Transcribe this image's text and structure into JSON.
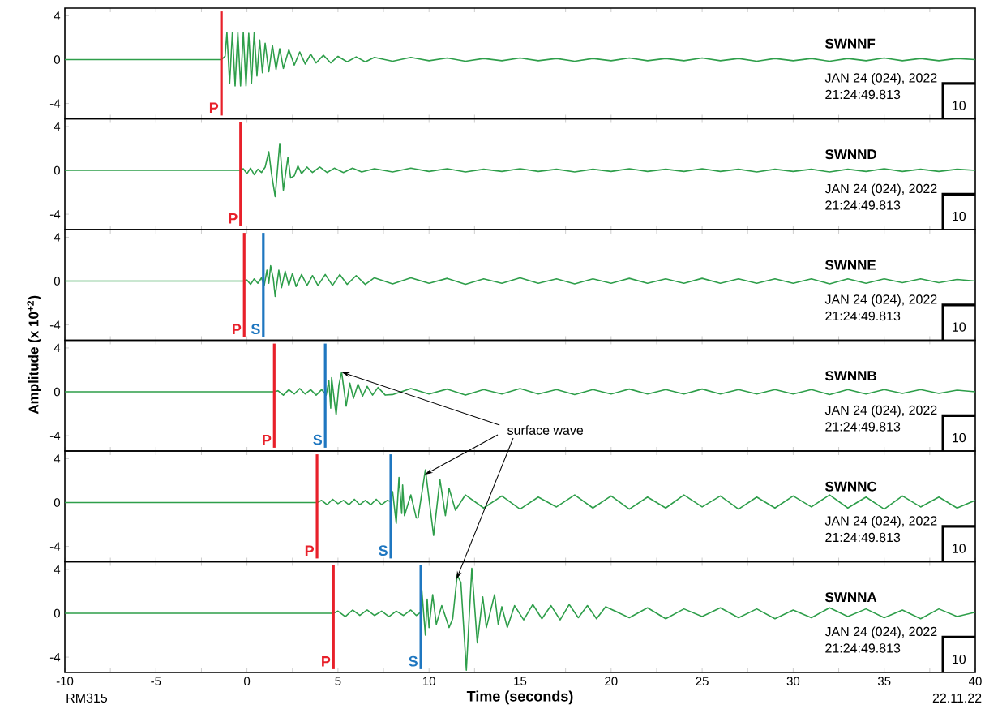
{
  "chart_data": [
    {
      "type": "line",
      "title": "SWNNF",
      "color": "#2e9e4a",
      "tick_labels": "y",
      "xlim": [
        -10,
        40
      ],
      "ylim": [
        -5.4,
        4.7
      ],
      "yticks": [
        -4,
        0,
        4
      ],
      "xticks": [
        -10,
        {
          "value": -7.5,
          "label": null
        },
        -5,
        {
          "value": -2.5,
          "label": null
        },
        0,
        {
          "value": 2.5,
          "label": null
        },
        5,
        {
          "value": 7.5,
          "label": null
        },
        10,
        {
          "value": 12.5,
          "label": null
        },
        15,
        {
          "value": 17.5,
          "label": null
        },
        20,
        {
          "value": 22.5,
          "label": null
        },
        25,
        {
          "value": 27.5,
          "label": null
        },
        30,
        {
          "value": 32.5,
          "label": null
        },
        35,
        {
          "value": 37.5,
          "label": null
        },
        40
      ],
      "x": [
        -10,
        -1.4,
        -1.2,
        -1.1,
        -0.95,
        -0.8,
        -0.65,
        -0.5,
        -0.35,
        -0.2,
        -0.05,
        0.1,
        0.25,
        0.4,
        0.55,
        0.7,
        0.85,
        1.0,
        1.2,
        1.4,
        1.6,
        1.8,
        2.0,
        2.3,
        2.6,
        2.9,
        3.2,
        3.5,
        3.8,
        4.2,
        4.6,
        5.0,
        5.5,
        6,
        6.5,
        7,
        8,
        9,
        10,
        11,
        12,
        13,
        14,
        15,
        16,
        17,
        18,
        19,
        20,
        21,
        22,
        23,
        24,
        25,
        26,
        27,
        28,
        29,
        30,
        31,
        32,
        33,
        34,
        35,
        36,
        37,
        38,
        39,
        40
      ],
      "values": [
        0,
        0,
        0.3,
        2.5,
        -2.2,
        2.5,
        -2.4,
        2.5,
        -2.4,
        2.5,
        -2.4,
        2.4,
        -2.2,
        2.5,
        -1.5,
        1.8,
        -1.2,
        1.5,
        -1.1,
        1.3,
        -0.9,
        1.0,
        -0.8,
        0.9,
        -0.5,
        0.7,
        -0.4,
        0.5,
        -0.3,
        0.4,
        -0.3,
        0.3,
        -0.2,
        0.25,
        -0.2,
        0.2,
        -0.15,
        0.2,
        -0.1,
        0.15,
        -0.15,
        0.1,
        -0.1,
        0.15,
        -0.1,
        0.1,
        -0.15,
        0.1,
        -0.1,
        0.15,
        -0.1,
        0.1,
        -0.1,
        0.15,
        -0.1,
        0.1,
        -0.15,
        0.1,
        -0.1,
        0.1,
        -0.15,
        0.1,
        -0.1,
        0.15,
        -0.1,
        0.1,
        -0.1,
        0.1,
        0
      ],
      "ref_lines": [
        {
          "axis": "x",
          "value": -1.4,
          "label": "P",
          "color": "#e8202a"
        }
      ],
      "annotations": [
        "JAN 24 (024), 2022",
        "21:24:49.813",
        "10"
      ]
    },
    {
      "type": "line",
      "title": "SWNND",
      "color": "#2e9e4a",
      "tick_labels": "y",
      "xlim": [
        -10,
        40
      ],
      "ylim": [
        -5.4,
        4.7
      ],
      "yticks": [
        -4,
        0,
        4
      ],
      "xticks": [
        -10,
        {
          "value": -7.5,
          "label": null
        },
        -5,
        {
          "value": -2.5,
          "label": null
        },
        0,
        {
          "value": 2.5,
          "label": null
        },
        5,
        {
          "value": 7.5,
          "label": null
        },
        10,
        {
          "value": 12.5,
          "label": null
        },
        15,
        {
          "value": 17.5,
          "label": null
        },
        20,
        {
          "value": 22.5,
          "label": null
        },
        25,
        {
          "value": 27.5,
          "label": null
        },
        30,
        {
          "value": 32.5,
          "label": null
        },
        35,
        {
          "value": 37.5,
          "label": null
        },
        40
      ],
      "x": [
        -10,
        -0.35,
        -0.2,
        0,
        0.2,
        0.4,
        0.6,
        0.8,
        1.0,
        1.2,
        1.35,
        1.55,
        1.8,
        2.0,
        2.25,
        2.4,
        2.6,
        2.8,
        3.0,
        3.3,
        3.6,
        4,
        4.4,
        4.8,
        5.3,
        5.8,
        6.3,
        7,
        8,
        9,
        10,
        11,
        12,
        13,
        14,
        15,
        16,
        17,
        18,
        19,
        20,
        21,
        22,
        23,
        24,
        25,
        26,
        27,
        28,
        29,
        30,
        31,
        32,
        33,
        34,
        35,
        36,
        37,
        38,
        39,
        40
      ],
      "values": [
        0,
        0,
        0.15,
        -0.3,
        0.2,
        -0.4,
        0.1,
        -0.2,
        0.3,
        1.7,
        -0.3,
        -2.4,
        2.45,
        -1.8,
        1.2,
        -0.7,
        -0.5,
        0.4,
        -0.3,
        0.3,
        -0.2,
        0.3,
        -0.2,
        0.2,
        -0.2,
        0.2,
        -0.15,
        0.15,
        -0.15,
        0.2,
        -0.1,
        0.15,
        -0.15,
        0.1,
        -0.1,
        0.15,
        -0.1,
        0.1,
        -0.15,
        0.1,
        -0.1,
        0.15,
        -0.1,
        0.1,
        -0.1,
        0.15,
        -0.1,
        0.1,
        -0.15,
        0.1,
        -0.1,
        0.1,
        -0.15,
        0.1,
        -0.1,
        0.15,
        -0.1,
        0.1,
        -0.1,
        0.1,
        0
      ],
      "ref_lines": [
        {
          "axis": "x",
          "value": -0.35,
          "label": "P",
          "color": "#e8202a"
        }
      ],
      "annotations": [
        "JAN 24 (024), 2022",
        "21:24:49.813",
        "10"
      ]
    },
    {
      "type": "line",
      "title": "SWNNE",
      "color": "#2e9e4a",
      "tick_labels": "y",
      "xlim": [
        -10,
        40
      ],
      "ylim": [
        -5.4,
        4.7
      ],
      "yticks": [
        -4,
        0,
        4
      ],
      "xticks": [
        -10,
        {
          "value": -7.5,
          "label": null
        },
        -5,
        {
          "value": -2.5,
          "label": null
        },
        0,
        {
          "value": 2.5,
          "label": null
        },
        5,
        {
          "value": 7.5,
          "label": null
        },
        10,
        {
          "value": 12.5,
          "label": null
        },
        15,
        {
          "value": 17.5,
          "label": null
        },
        20,
        {
          "value": 22.5,
          "label": null
        },
        25,
        {
          "value": 27.5,
          "label": null
        },
        30,
        {
          "value": 32.5,
          "label": null
        },
        35,
        {
          "value": 37.5,
          "label": null
        },
        40
      ],
      "x": [
        -10,
        -0.15,
        0,
        0.2,
        0.4,
        0.6,
        0.8,
        0.95,
        1.1,
        1.2,
        1.3,
        1.45,
        1.55,
        1.75,
        1.9,
        2.1,
        2.3,
        2.5,
        2.7,
        3.0,
        3.3,
        3.6,
        3.9,
        4.3,
        4.7,
        5.1,
        5.5,
        6,
        6.5,
        7,
        8,
        9,
        10,
        11,
        12,
        13,
        14,
        15,
        16,
        17,
        18,
        19,
        20,
        21,
        22,
        23,
        24,
        25,
        26,
        27,
        28,
        29,
        30,
        31,
        32,
        33,
        34,
        35,
        36,
        37,
        38,
        39,
        40
      ],
      "values": [
        0,
        0,
        0.1,
        -0.3,
        0.2,
        -0.2,
        0.3,
        -0.4,
        1.0,
        -0.2,
        1.4,
        0.2,
        -1.4,
        1.0,
        -0.6,
        0.9,
        -0.4,
        0.7,
        -0.5,
        0.6,
        -0.4,
        0.5,
        -0.4,
        0.6,
        -0.4,
        0.6,
        -0.3,
        0.5,
        -0.3,
        0.3,
        -0.25,
        0.3,
        -0.2,
        0.25,
        -0.3,
        0.2,
        -0.2,
        0.3,
        -0.2,
        0.2,
        -0.25,
        0.2,
        -0.2,
        0.25,
        -0.2,
        0.2,
        -0.2,
        0.25,
        -0.2,
        0.2,
        -0.2,
        0.2,
        -0.2,
        0.2,
        -0.25,
        0.2,
        -0.2,
        0.2,
        -0.15,
        0.2,
        -0.15,
        0.15,
        0
      ],
      "ref_lines": [
        {
          "axis": "x",
          "value": -0.15,
          "label": "P",
          "color": "#e8202a"
        },
        {
          "axis": "x",
          "value": 0.9,
          "label": "S",
          "color": "#1f77c0"
        }
      ],
      "annotations": [
        "JAN 24 (024), 2022",
        "21:24:49.813",
        "10"
      ]
    },
    {
      "type": "line",
      "title": "SWNNB",
      "color": "#2e9e4a",
      "tick_labels": "y",
      "xlim": [
        -10,
        40
      ],
      "ylim": [
        -5.4,
        4.7
      ],
      "yticks": [
        -4,
        0,
        4
      ],
      "ylabel": "Amplitude (x 10$^{+2}$)",
      "xticks": [
        -10,
        {
          "value": -7.5,
          "label": null
        },
        -5,
        {
          "value": -2.5,
          "label": null
        },
        0,
        {
          "value": 2.5,
          "label": null
        },
        5,
        {
          "value": 7.5,
          "label": null
        },
        10,
        {
          "value": 12.5,
          "label": null
        },
        15,
        {
          "value": 17.5,
          "label": null
        },
        20,
        {
          "value": 22.5,
          "label": null
        },
        25,
        {
          "value": 27.5,
          "label": null
        },
        30,
        {
          "value": 32.5,
          "label": null
        },
        35,
        {
          "value": 37.5,
          "label": null
        },
        40
      ],
      "x": [
        -10,
        1.5,
        1.7,
        2.0,
        2.3,
        2.6,
        2.9,
        3.2,
        3.5,
        3.8,
        4.1,
        4.35,
        4.5,
        4.6,
        4.65,
        4.8,
        4.9,
        5.05,
        5.2,
        5.45,
        5.65,
        5.85,
        6.1,
        6.35,
        6.6,
        6.9,
        7.2,
        7.6,
        8,
        9,
        10,
        11,
        12,
        13,
        14,
        15,
        16,
        17,
        18,
        19,
        20,
        21,
        22,
        23,
        24,
        25,
        26,
        27,
        28,
        29,
        30,
        31,
        32,
        33,
        34,
        35,
        36,
        37,
        38,
        39,
        40
      ],
      "values": [
        0,
        0,
        0.1,
        -0.3,
        0.2,
        -0.2,
        0.3,
        -0.2,
        0.2,
        -0.3,
        0.2,
        -0.3,
        1.0,
        -1.5,
        1.3,
        -0.8,
        -2.1,
        0.6,
        1.8,
        -1.3,
        0.8,
        -0.6,
        0.7,
        -0.4,
        0.5,
        -0.3,
        0.4,
        -0.3,
        -0.25,
        0.3,
        -0.2,
        0.25,
        -0.3,
        0.2,
        -0.2,
        0.3,
        -0.2,
        0.2,
        -0.25,
        0.2,
        -0.2,
        0.25,
        -0.2,
        0.2,
        -0.2,
        0.25,
        -0.2,
        0.2,
        -0.2,
        0.2,
        -0.2,
        0.2,
        -0.25,
        0.2,
        -0.2,
        0.2,
        -0.15,
        0.2,
        -0.15,
        0.15,
        0
      ],
      "ref_lines": [
        {
          "axis": "x",
          "value": 1.5,
          "label": "P",
          "color": "#e8202a"
        },
        {
          "axis": "x",
          "value": 4.3,
          "label": "S",
          "color": "#1f77c0"
        }
      ],
      "annotations": [
        "JAN 24 (024), 2022",
        "21:24:49.813",
        "10",
        {
          "text": "surface wave",
          "x": 5.2,
          "y": 1.8
        }
      ]
    },
    {
      "type": "line",
      "title": "SWNNC",
      "color": "#2e9e4a",
      "tick_labels": "y",
      "xlim": [
        -10,
        40
      ],
      "ylim": [
        -5.4,
        4.7
      ],
      "yticks": [
        -4,
        0,
        4
      ],
      "xticks": [
        -10,
        {
          "value": -7.5,
          "label": null
        },
        -5,
        {
          "value": -2.5,
          "label": null
        },
        0,
        {
          "value": 2.5,
          "label": null
        },
        5,
        {
          "value": 7.5,
          "label": null
        },
        10,
        {
          "value": 12.5,
          "label": null
        },
        15,
        {
          "value": 17.5,
          "label": null
        },
        20,
        {
          "value": 22.5,
          "label": null
        },
        25,
        {
          "value": 27.5,
          "label": null
        },
        30,
        {
          "value": 32.5,
          "label": null
        },
        35,
        {
          "value": 37.5,
          "label": null
        },
        40
      ],
      "x": [
        -10,
        3.85,
        4.1,
        4.4,
        4.7,
        5.0,
        5.3,
        5.6,
        5.9,
        6.2,
        6.5,
        6.8,
        7.1,
        7.4,
        7.7,
        7.9,
        8.0,
        8.2,
        8.35,
        8.5,
        8.55,
        8.65,
        9.0,
        9.3,
        9.4,
        9.8,
        10.25,
        10.6,
        10.9,
        11.1,
        11.45,
        12,
        13,
        14,
        15,
        16,
        17,
        18,
        19,
        20,
        21,
        22,
        23,
        24,
        25,
        26,
        27,
        28,
        29,
        30,
        31,
        32,
        33,
        34,
        35,
        36,
        37,
        38,
        39,
        40
      ],
      "values": [
        0,
        0,
        0.2,
        -0.2,
        0.3,
        -0.1,
        0.2,
        -0.2,
        0.3,
        -0.2,
        0.2,
        -0.2,
        0.3,
        -0.2,
        0.2,
        0.1,
        1.0,
        -1.9,
        2.3,
        -1.0,
        1.6,
        -1.2,
        0.7,
        -1.4,
        -1.4,
        3.0,
        -3.0,
        2.1,
        -1.2,
        1.3,
        -0.7,
        0.7,
        -0.5,
        0.6,
        -0.6,
        0.5,
        -0.4,
        0.7,
        -0.5,
        0.6,
        -0.6,
        0.5,
        -0.5,
        0.7,
        -0.4,
        0.6,
        -0.6,
        0.5,
        -0.5,
        0.6,
        -0.4,
        0.7,
        -0.5,
        0.5,
        -0.6,
        0.6,
        -0.4,
        0.5,
        -0.5,
        0.2
      ],
      "ref_lines": [
        {
          "axis": "x",
          "value": 3.85,
          "label": "P",
          "color": "#e8202a"
        },
        {
          "axis": "x",
          "value": 7.9,
          "label": "S",
          "color": "#1f77c0"
        }
      ],
      "annotations": [
        "JAN 24 (024), 2022",
        "21:24:49.813",
        "10"
      ]
    },
    {
      "type": "line",
      "title": "SWNNA",
      "color": "#2e9e4a",
      "xlim": [
        -10,
        40
      ],
      "ylim": [
        -5.4,
        4.7
      ],
      "yticks": [
        -4,
        0,
        4
      ],
      "xlabel": "Time (seconds)",
      "xticks": [
        -10,
        {
          "value": -7.5,
          "label": null
        },
        -5,
        {
          "value": -2.5,
          "label": null
        },
        0,
        {
          "value": 2.5,
          "label": null
        },
        5,
        {
          "value": 7.5,
          "label": null
        },
        10,
        {
          "value": 12.5,
          "label": null
        },
        15,
        {
          "value": 17.5,
          "label": null
        },
        20,
        {
          "value": 22.5,
          "label": null
        },
        25,
        {
          "value": 27.5,
          "label": null
        },
        30,
        {
          "value": 32.5,
          "label": null
        },
        35,
        {
          "value": 37.5,
          "label": null
        },
        40
      ],
      "x": [
        -10,
        4.75,
        5.0,
        5.4,
        5.8,
        6.2,
        6.6,
        7.0,
        7.4,
        7.8,
        8.2,
        8.6,
        9.0,
        9.3,
        9.55,
        9.6,
        9.8,
        9.9,
        10.0,
        10.2,
        10.4,
        10.7,
        11.1,
        11.3,
        11.55,
        11.75,
        12.05,
        12.35,
        12.65,
        12.95,
        13.15,
        13.6,
        13.8,
        14.0,
        14.3,
        14.7,
        15.2,
        15.7,
        16.2,
        16.7,
        17.2,
        17.7,
        18.2,
        18.7,
        19.2,
        19.7,
        21,
        22,
        23,
        24,
        25,
        26,
        27,
        28,
        29,
        30,
        31,
        32,
        33,
        34,
        35,
        36,
        37,
        38,
        39,
        40
      ],
      "values": [
        0,
        0,
        0.2,
        -0.3,
        0.3,
        -0.2,
        0.3,
        -0.2,
        0.2,
        -0.3,
        0.2,
        -0.2,
        0.3,
        -0.2,
        0.1,
        2.2,
        -2.0,
        1.3,
        -1.3,
        1.7,
        -1.0,
        0.7,
        -1.3,
        -0.5,
        3.5,
        2.8,
        -5.2,
        4.1,
        -2.7,
        1.5,
        -1.3,
        1.7,
        -1.0,
        0.6,
        -1.3,
        0.7,
        -0.6,
        0.8,
        -0.5,
        0.7,
        -0.6,
        0.8,
        -0.4,
        0.7,
        -0.5,
        0.6,
        -0.4,
        0.5,
        -0.5,
        0.4,
        -0.3,
        0.5,
        -0.4,
        0.4,
        -0.5,
        0.3,
        -0.4,
        0.5,
        -0.3,
        0.4,
        -0.4,
        0.3,
        -0.5,
        0.4,
        -0.3,
        0.1
      ],
      "ref_lines": [
        {
          "axis": "x",
          "value": 4.75,
          "label": "P",
          "color": "#e8202a"
        },
        {
          "axis": "x",
          "value": 9.55,
          "label": "S",
          "color": "#1f77c0"
        }
      ],
      "annotations": [
        "JAN 24 (024), 2022",
        "21:24:49.813",
        "10",
        "RM315",
        "22.11.22"
      ]
    }
  ]
}
